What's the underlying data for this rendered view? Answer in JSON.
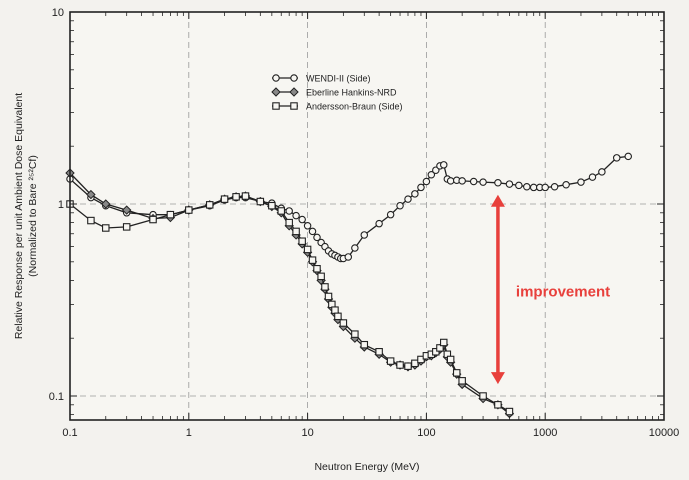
{
  "chart_data": {
    "type": "line",
    "xscale": "log",
    "yscale": "log",
    "xlim": [
      0.1,
      10000
    ],
    "ylim": [
      0.075,
      10
    ],
    "xlabel": "Neutron Energy (MeV)",
    "ylabel": "Relative Response per unit Ambient Dose Equivalent",
    "ylabel2": "(Normalized to Bare ²⁵²Cf)",
    "x_ticks": [
      "0.1",
      "1",
      "10",
      "100",
      "1000",
      "10000"
    ],
    "y_ticks": [
      "0.1",
      "1",
      "10"
    ],
    "grid": true,
    "legend_position": "top-center",
    "annotation": {
      "text": "improvement",
      "arrow_x": 400,
      "arrow_y_from": 1.2,
      "arrow_y_to": 0.11,
      "color": "#e8403c"
    },
    "series": [
      {
        "name": "WENDI-II (Side)",
        "marker": "circle",
        "color": "#222222",
        "x": [
          0.1,
          0.15,
          0.2,
          0.3,
          0.5,
          0.7,
          1.0,
          1.5,
          2.0,
          2.5,
          3.0,
          4.0,
          5.0,
          6.0,
          7.0,
          8.0,
          9.0,
          10.0,
          11.0,
          12.0,
          13.0,
          14.0,
          15.0,
          16.0,
          17.0,
          18.0,
          19.0,
          20.0,
          22.0,
          25.0,
          30.0,
          40.0,
          50.0,
          60.0,
          70.0,
          80.0,
          90.0,
          100.0,
          110.0,
          120.0,
          130.0,
          140.0,
          150.0,
          160.0,
          180.0,
          200.0,
          250.0,
          300.0,
          400.0,
          500.0,
          600.0,
          700.0,
          800.0,
          900.0,
          1000.0,
          1200.0,
          1500.0,
          2000.0,
          2500.0,
          3000.0,
          4000.0,
          5000.0
        ],
        "values": [
          1.35,
          1.08,
          0.98,
          0.9,
          0.88,
          0.88,
          0.93,
          0.98,
          1.05,
          1.08,
          1.08,
          1.03,
          1.01,
          0.95,
          0.92,
          0.87,
          0.83,
          0.77,
          0.72,
          0.67,
          0.63,
          0.6,
          0.57,
          0.55,
          0.54,
          0.53,
          0.52,
          0.52,
          0.53,
          0.59,
          0.69,
          0.79,
          0.88,
          0.98,
          1.06,
          1.13,
          1.22,
          1.31,
          1.42,
          1.5,
          1.58,
          1.6,
          1.35,
          1.32,
          1.33,
          1.32,
          1.31,
          1.3,
          1.29,
          1.27,
          1.25,
          1.23,
          1.22,
          1.22,
          1.22,
          1.23,
          1.26,
          1.3,
          1.38,
          1.47,
          1.74,
          1.77
        ]
      },
      {
        "name": "Eberline Hankins-NRD",
        "marker": "diamond",
        "color": "#222222",
        "x": [
          0.1,
          0.15,
          0.2,
          0.3,
          0.5,
          0.7,
          1.0,
          1.5,
          2.0,
          2.5,
          3.0,
          4.0,
          5.0,
          6.0,
          7.0,
          8.0,
          9.0,
          10.0,
          11.0,
          12.0,
          13.0,
          14.0,
          15.0,
          16.0,
          17.0,
          18.0,
          20.0,
          25.0,
          30.0,
          40.0,
          50.0,
          60.0,
          70.0,
          80.0,
          90.0,
          100.0,
          110.0,
          120.0,
          130.0,
          140.0,
          150.0,
          160.0,
          180.0,
          200.0,
          300.0,
          400.0,
          500.0
        ],
        "values": [
          1.45,
          1.12,
          1.0,
          0.93,
          0.84,
          0.85,
          0.93,
          0.99,
          1.06,
          1.09,
          1.1,
          1.03,
          0.97,
          0.9,
          0.77,
          0.69,
          0.62,
          0.56,
          0.5,
          0.45,
          0.4,
          0.36,
          0.32,
          0.29,
          0.27,
          0.25,
          0.23,
          0.2,
          0.18,
          0.165,
          0.15,
          0.145,
          0.142,
          0.145,
          0.152,
          0.16,
          0.162,
          0.168,
          0.175,
          0.185,
          0.16,
          0.15,
          0.13,
          0.115,
          0.097,
          0.09,
          0.081
        ]
      },
      {
        "name": "Andersson-Braun (Side)",
        "marker": "square",
        "color": "#222222",
        "x": [
          0.1,
          0.15,
          0.2,
          0.3,
          0.5,
          0.7,
          1.0,
          1.5,
          2.0,
          2.5,
          3.0,
          4.0,
          5.0,
          6.0,
          7.0,
          8.0,
          9.0,
          10.0,
          11.0,
          12.0,
          13.0,
          14.0,
          15.0,
          16.0,
          17.0,
          18.0,
          20.0,
          25.0,
          30.0,
          40.0,
          50.0,
          60.0,
          70.0,
          80.0,
          90.0,
          100.0,
          110.0,
          120.0,
          130.0,
          140.0,
          150.0,
          160.0,
          180.0,
          200.0,
          300.0,
          400.0,
          500.0
        ],
        "values": [
          1.0,
          0.82,
          0.75,
          0.76,
          0.83,
          0.88,
          0.93,
          0.99,
          1.06,
          1.09,
          1.1,
          1.03,
          0.98,
          0.92,
          0.8,
          0.72,
          0.64,
          0.58,
          0.51,
          0.46,
          0.42,
          0.37,
          0.33,
          0.3,
          0.28,
          0.26,
          0.24,
          0.21,
          0.185,
          0.17,
          0.152,
          0.145,
          0.143,
          0.148,
          0.155,
          0.162,
          0.165,
          0.17,
          0.178,
          0.19,
          0.165,
          0.155,
          0.132,
          0.12,
          0.1,
          0.09,
          0.083
        ]
      }
    ]
  }
}
